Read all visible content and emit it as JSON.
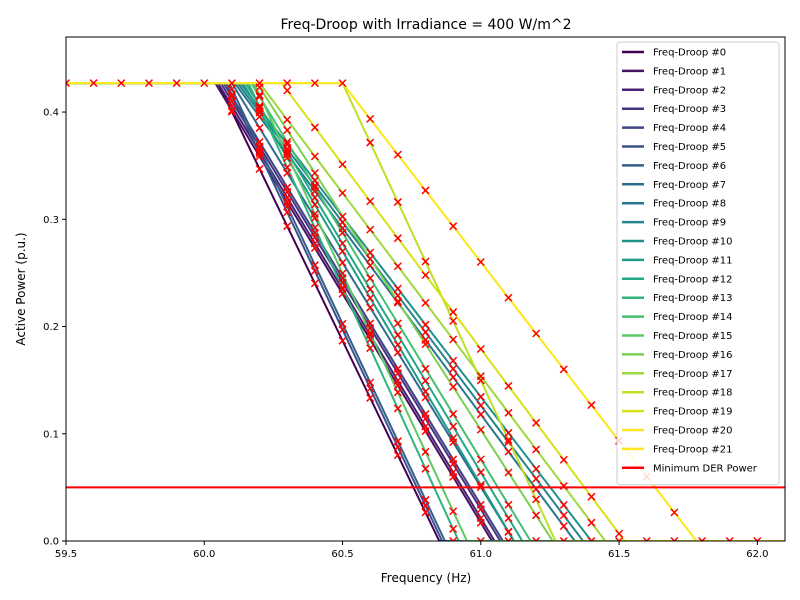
{
  "chart_data": {
    "type": "line",
    "title": "Freq-Droop with Irradiance = 400 W/m^2",
    "xlabel": "Frequency (Hz)",
    "ylabel": "Active Power (p.u.)",
    "xlim": [
      59.5,
      62.1
    ],
    "ylim": [
      0,
      0.47
    ],
    "xticks": [
      59.5,
      60.0,
      60.5,
      61.0,
      61.5,
      62.0
    ],
    "xtick_labels": [
      "59.5",
      "60.0",
      "60.5",
      "61.0",
      "61.5",
      "62.0"
    ],
    "yticks": [
      0.0,
      0.1,
      0.2,
      0.3,
      0.4
    ],
    "ytick_labels": [
      "0.0",
      "0.1",
      "0.2",
      "0.3",
      "0.4"
    ],
    "grid": false,
    "legend_position": "top-right",
    "pmax": 0.427,
    "min_der_power": 0.05,
    "min_der_label": "Minimum DER Power",
    "min_der_color": "#ff0000",
    "marker_color": "#ff0000",
    "marker_frequencies": [
      59.5,
      59.6,
      59.7,
      59.8,
      59.9,
      60.0,
      60.1,
      60.2,
      60.3,
      60.4,
      60.5,
      60.6,
      60.7,
      60.8,
      60.9,
      61.0,
      61.1,
      61.2,
      61.3,
      61.4,
      61.5,
      61.6,
      61.7,
      61.8,
      61.9,
      62.0
    ],
    "series": [
      {
        "name": "Freq-Droop #0",
        "color": "#440154",
        "f_start": 60.05,
        "f_zero": 60.85
      },
      {
        "name": "Freq-Droop #1",
        "color": "#471164",
        "f_start": 60.04,
        "f_zero": 61.04
      },
      {
        "name": "Freq-Droop #2",
        "color": "#482172",
        "f_start": 60.05,
        "f_zero": 61.05
      },
      {
        "name": "Freq-Droop #3",
        "color": "#463480",
        "f_start": 60.06,
        "f_zero": 61.07
      },
      {
        "name": "Freq-Droop #4",
        "color": "#414487",
        "f_start": 60.07,
        "f_zero": 61.08
      },
      {
        "name": "Freq-Droop #5",
        "color": "#3b528b",
        "f_start": 60.08,
        "f_zero": 60.86
      },
      {
        "name": "Freq-Droop #6",
        "color": "#355f8d",
        "f_start": 60.09,
        "f_zero": 60.87
      },
      {
        "name": "Freq-Droop #7",
        "color": "#2f6c8e",
        "f_start": 60.1,
        "f_zero": 61.12
      },
      {
        "name": "Freq-Droop #8",
        "color": "#2a788e",
        "f_start": 60.11,
        "f_zero": 61.34
      },
      {
        "name": "Freq-Droop #9",
        "color": "#25848e",
        "f_start": 60.12,
        "f_zero": 61.37
      },
      {
        "name": "Freq-Droop #10",
        "color": "#21918c",
        "f_start": 60.13,
        "f_zero": 61.4
      },
      {
        "name": "Freq-Droop #11",
        "color": "#1e9c89",
        "f_start": 60.14,
        "f_zero": 61.12
      },
      {
        "name": "Freq-Droop #12",
        "color": "#22a884",
        "f_start": 60.15,
        "f_zero": 61.15
      },
      {
        "name": "Freq-Droop #13",
        "color": "#2fb47c",
        "f_start": 60.16,
        "f_zero": 60.92
      },
      {
        "name": "Freq-Droop #14",
        "color": "#44bf70",
        "f_start": 60.17,
        "f_zero": 61.18
      },
      {
        "name": "Freq-Droop #15",
        "color": "#5ec962",
        "f_start": 60.18,
        "f_zero": 60.95
      },
      {
        "name": "Freq-Droop #16",
        "color": "#7ad151",
        "f_start": 60.19,
        "f_zero": 61.26
      },
      {
        "name": "Freq-Droop #17",
        "color": "#9bd93c",
        "f_start": 60.2,
        "f_zero": 61.45
      },
      {
        "name": "Freq-Droop #18",
        "color": "#bddf26",
        "f_start": 60.5,
        "f_zero": 61.27
      },
      {
        "name": "Freq-Droop #19",
        "color": "#d8e219",
        "f_start": 60.28,
        "f_zero": 61.52
      },
      {
        "name": "Freq-Droop #20",
        "color": "#fde725",
        "f_start": 60.5,
        "f_zero": 61.78
      },
      {
        "name": "Freq-Droop #21",
        "color": "#fde725",
        "f_start": 60.5,
        "f_zero": 61.78
      }
    ]
  }
}
